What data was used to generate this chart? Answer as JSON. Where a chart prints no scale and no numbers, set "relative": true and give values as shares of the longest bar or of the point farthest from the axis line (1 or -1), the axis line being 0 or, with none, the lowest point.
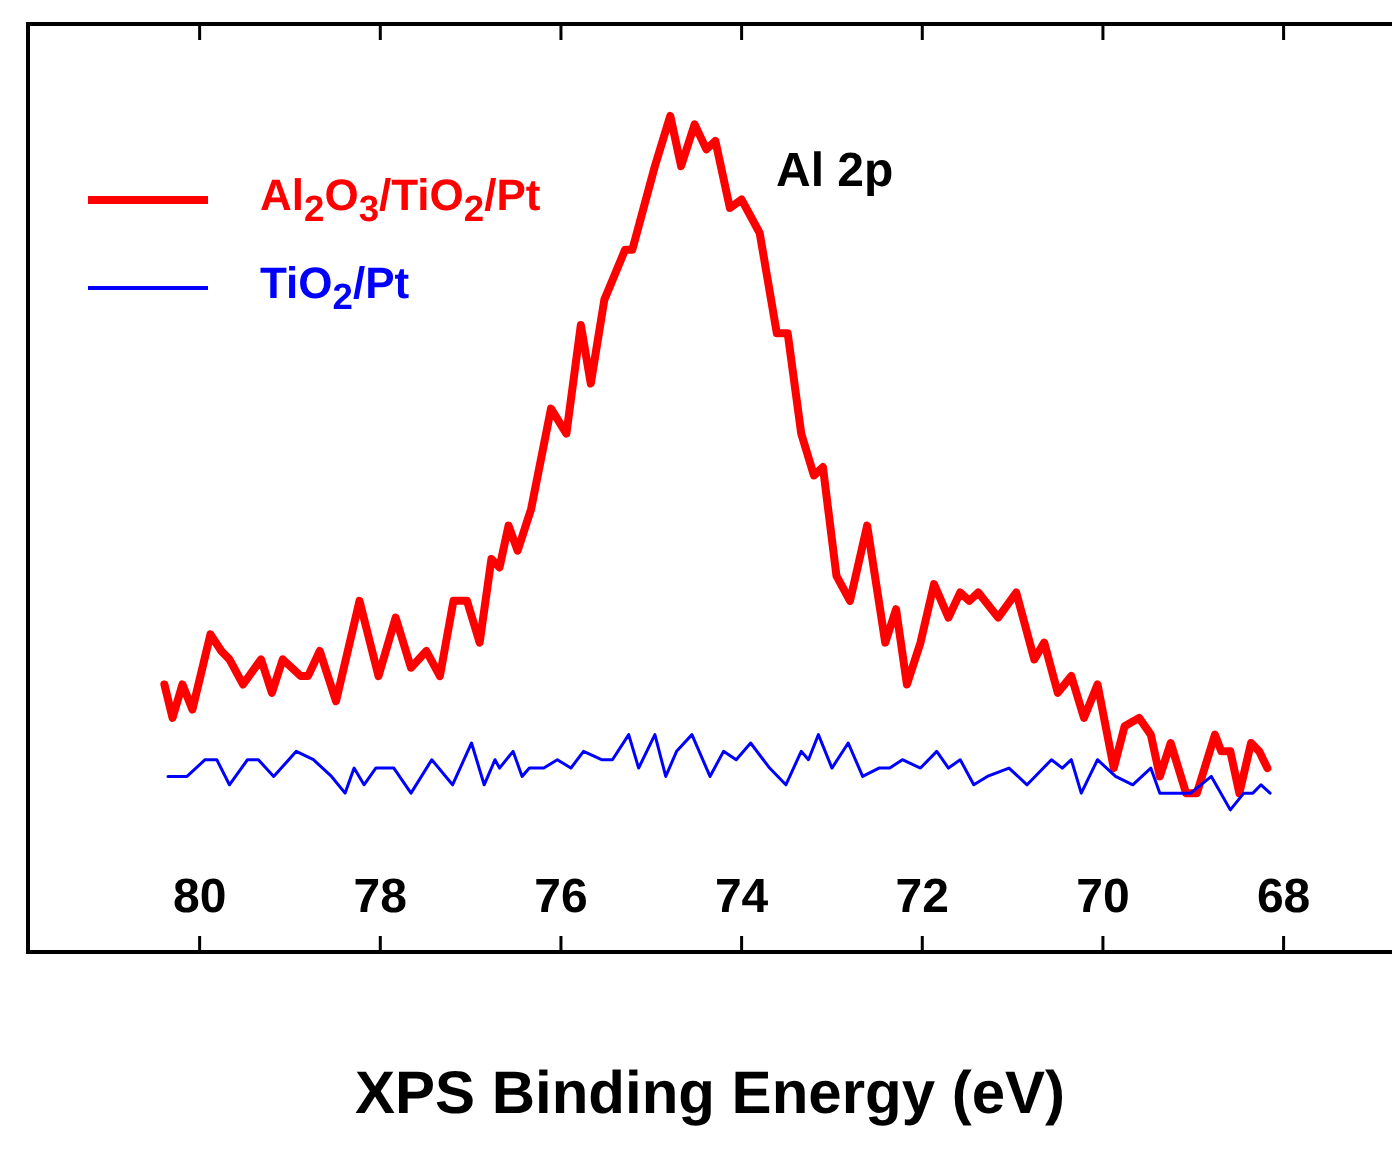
{
  "chart_data": {
    "type": "line",
    "xlabel": "XPS Binding Energy (eV)",
    "annotations": [
      "Al 2p"
    ],
    "relative": true,
    "xlim": [
      81.9,
      66.8
    ],
    "xticks": [
      80,
      78,
      76,
      74,
      72,
      70,
      68
    ],
    "grid": false,
    "legend": "top left",
    "marker": "none",
    "line_style": "solid",
    "series": [
      {
        "name": "Al$_{2}$O$_{3}$/TiO$_{2}$/Pt",
        "color": "#ff0000",
        "x": [
          80.39,
          80.3,
          80.19,
          80.08,
          79.88,
          79.76,
          79.67,
          79.52,
          79.32,
          79.2,
          79.08,
          78.88,
          78.8,
          78.67,
          78.49,
          78.23,
          78.02,
          77.83,
          77.66,
          77.49,
          77.34,
          77.19,
          77.04,
          76.9,
          76.77,
          76.68,
          76.58,
          76.48,
          76.33,
          76.11,
          75.94,
          75.78,
          75.67,
          75.52,
          75.29,
          75.21,
          74.96,
          74.79,
          74.67,
          74.52,
          74.39,
          74.29,
          74.13,
          74.0,
          73.8,
          73.61,
          73.49,
          73.34,
          73.2,
          73.1,
          72.95,
          72.8,
          72.61,
          72.41,
          72.29,
          72.17,
          72.02,
          71.87,
          71.71,
          71.58,
          71.48,
          71.38,
          71.16,
          70.96,
          70.76,
          70.65,
          70.5,
          70.35,
          70.21,
          70.06,
          69.88,
          69.76,
          69.6,
          69.47,
          69.37,
          69.25,
          69.08,
          68.96,
          68.76,
          68.69,
          68.59,
          68.49,
          68.36,
          68.27,
          68.18
        ],
        "values": [
          0.32,
          0.28,
          0.32,
          0.29,
          0.38,
          0.36,
          0.35,
          0.32,
          0.35,
          0.31,
          0.35,
          0.33,
          0.33,
          0.36,
          0.3,
          0.42,
          0.33,
          0.4,
          0.34,
          0.36,
          0.33,
          0.42,
          0.42,
          0.37,
          0.47,
          0.46,
          0.51,
          0.48,
          0.53,
          0.65,
          0.62,
          0.75,
          0.68,
          0.78,
          0.84,
          0.84,
          0.94,
          1,
          0.94,
          0.99,
          0.96,
          0.97,
          0.89,
          0.9,
          0.86,
          0.74,
          0.74,
          0.62,
          0.57,
          0.58,
          0.45,
          0.42,
          0.51,
          0.37,
          0.41,
          0.32,
          0.37,
          0.44,
          0.4,
          0.43,
          0.42,
          0.43,
          0.4,
          0.43,
          0.35,
          0.37,
          0.31,
          0.33,
          0.28,
          0.32,
          0.22,
          0.27,
          0.28,
          0.26,
          0.21,
          0.25,
          0.19,
          0.19,
          0.26,
          0.24,
          0.24,
          0.19,
          0.25,
          0.24,
          0.22
        ]
      },
      {
        "name": "TiO$_{2}$/Pt",
        "color": "#0000ff",
        "x": [
          80.35,
          80.25,
          80.14,
          79.94,
          79.81,
          79.67,
          79.47,
          79.35,
          79.18,
          78.93,
          78.74,
          78.54,
          78.39,
          78.29,
          78.18,
          78.05,
          77.85,
          77.66,
          77.43,
          77.2,
          76.99,
          76.85,
          76.73,
          76.68,
          76.53,
          76.43,
          76.35,
          76.19,
          76.04,
          75.89,
          75.75,
          75.55,
          75.43,
          75.25,
          75.14,
          74.96,
          74.84,
          74.72,
          74.55,
          74.35,
          74.2,
          74.06,
          73.9,
          73.69,
          73.51,
          73.34,
          73.26,
          73.15,
          73.0,
          72.82,
          72.66,
          72.48,
          72.36,
          72.22,
          72.02,
          71.84,
          71.71,
          71.58,
          71.43,
          71.28,
          71.04,
          70.84,
          70.57,
          70.45,
          70.35,
          70.24,
          70.06,
          69.86,
          69.67,
          69.47,
          69.37,
          69.18,
          69.03,
          68.8,
          68.59,
          68.44,
          68.34,
          68.25,
          68.15
        ],
        "values": [
          0.21,
          0.21,
          0.21,
          0.23,
          0.23,
          0.2,
          0.23,
          0.23,
          0.21,
          0.24,
          0.23,
          0.21,
          0.19,
          0.22,
          0.2,
          0.22,
          0.22,
          0.19,
          0.23,
          0.2,
          0.25,
          0.2,
          0.23,
          0.22,
          0.24,
          0.21,
          0.22,
          0.22,
          0.23,
          0.22,
          0.24,
          0.23,
          0.23,
          0.26,
          0.22,
          0.26,
          0.21,
          0.24,
          0.26,
          0.21,
          0.24,
          0.23,
          0.25,
          0.22,
          0.2,
          0.24,
          0.23,
          0.26,
          0.22,
          0.25,
          0.21,
          0.22,
          0.22,
          0.23,
          0.22,
          0.24,
          0.22,
          0.23,
          0.2,
          0.21,
          0.22,
          0.2,
          0.23,
          0.22,
          0.23,
          0.19,
          0.23,
          0.21,
          0.2,
          0.22,
          0.19,
          0.19,
          0.19,
          0.21,
          0.17,
          0.19,
          0.19,
          0.2,
          0.19
        ]
      }
    ]
  }
}
